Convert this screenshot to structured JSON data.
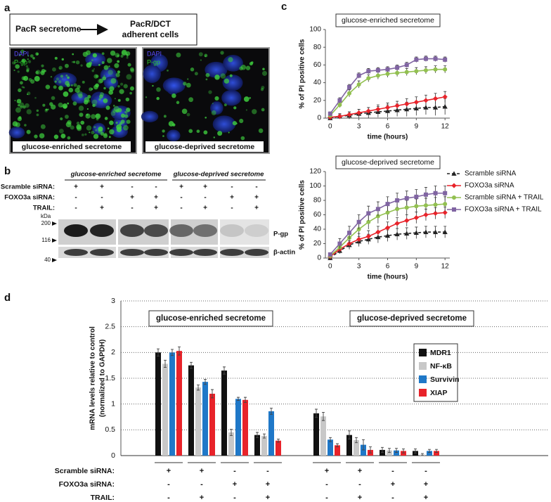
{
  "panel_labels": [
    "a",
    "b",
    "c",
    "d"
  ],
  "panel_a": {
    "scheme": {
      "source": "PacR secretome",
      "target": [
        "PacR/DCT",
        "adherent cells"
      ]
    },
    "images": [
      {
        "stains": [
          "DAPI",
          "P-gp"
        ],
        "caption": "glucose-enriched secretome"
      },
      {
        "stains": [
          "DAPI",
          "P-gp"
        ],
        "caption": "glucose-deprived secretome"
      }
    ]
  },
  "panel_b": {
    "groups": [
      "glucose-enriched secretome",
      "glucose-deprived secretome"
    ],
    "conditions": [
      {
        "label": "Scramble siRNA:",
        "signs": [
          "+",
          "+",
          "-",
          "-",
          "+",
          "+",
          "-",
          "-"
        ]
      },
      {
        "label": "FOXO3a siRNA:",
        "signs": [
          "-",
          "-",
          "+",
          "+",
          "-",
          "-",
          "+",
          "+"
        ]
      },
      {
        "label": "TRAIL:",
        "signs": [
          "-",
          "+",
          "-",
          "+",
          "-",
          "+",
          "-",
          "+"
        ]
      }
    ],
    "kda_unit": "kDa",
    "markers": [
      200,
      116,
      40
    ],
    "bands": [
      "P-gp",
      "β-actin"
    ]
  },
  "chart_data": [
    {
      "type": "line",
      "title": "glucose-enriched secretome",
      "xlabel": "time (hours)",
      "ylabel": "% of PI positive cells",
      "x": [
        0,
        1,
        2,
        3,
        4,
        5,
        6,
        7,
        8,
        9,
        10,
        11,
        12
      ],
      "xlim": [
        -0.5,
        12.5
      ],
      "xticks": [
        0,
        3,
        6,
        9,
        12
      ],
      "ylim": [
        0,
        100
      ],
      "yticks": [
        0,
        20,
        40,
        60,
        80,
        100
      ],
      "legend": false,
      "series": [
        {
          "color": "#222222",
          "marker": "triangle",
          "linestyle": "dashed",
          "values": [
            0,
            2,
            3,
            5,
            6,
            7,
            8,
            9,
            10,
            11,
            12,
            12,
            13
          ],
          "errors": [
            1,
            3,
            4,
            5,
            6,
            6,
            7,
            7,
            8,
            8,
            8,
            9,
            9
          ]
        },
        {
          "color": "#e8232a",
          "marker": "diamond",
          "linestyle": "solid",
          "values": [
            1,
            2,
            4,
            6,
            8,
            10,
            12,
            14,
            16,
            18,
            20,
            22,
            24
          ],
          "errors": [
            1,
            2,
            3,
            4,
            4,
            5,
            5,
            5,
            6,
            6,
            6,
            6,
            6
          ]
        },
        {
          "color": "#92c050",
          "marker": "circle",
          "linestyle": "solid",
          "values": [
            3,
            15,
            28,
            38,
            45,
            48,
            50,
            51,
            52,
            53,
            54,
            55,
            55
          ],
          "errors": [
            2,
            3,
            4,
            4,
            4,
            4,
            4,
            4,
            4,
            4,
            4,
            4,
            4
          ]
        },
        {
          "color": "#8064a2",
          "marker": "square",
          "linestyle": "solid",
          "values": [
            5,
            20,
            35,
            48,
            53,
            54,
            55,
            57,
            60,
            66,
            67,
            67,
            66
          ],
          "errors": [
            2,
            3,
            3,
            3,
            3,
            3,
            3,
            3,
            3,
            3,
            3,
            3,
            3
          ]
        }
      ]
    },
    {
      "type": "line",
      "title": "glucose-deprived secretome",
      "xlabel": "time (hours)",
      "ylabel": "% of PI positive cells",
      "x": [
        0,
        1,
        2,
        3,
        4,
        5,
        6,
        7,
        8,
        9,
        10,
        11,
        12
      ],
      "xlim": [
        -0.5,
        12.5
      ],
      "xticks": [
        0,
        3,
        6,
        9,
        12
      ],
      "ylim": [
        0,
        120
      ],
      "yticks": [
        0,
        20,
        40,
        60,
        80,
        100,
        120
      ],
      "legend": true,
      "legend_position": "right",
      "series": [
        {
          "name": "Scramble siRNA",
          "color": "#222222",
          "marker": "triangle",
          "linestyle": "dashed",
          "values": [
            0,
            10,
            18,
            23,
            26,
            29,
            31,
            33,
            34,
            35,
            36,
            36,
            36
          ],
          "errors": [
            1,
            4,
            6,
            7,
            7,
            8,
            8,
            8,
            8,
            8,
            8,
            8,
            8
          ]
        },
        {
          "name": "FOXO3a siRNA",
          "color": "#e8232a",
          "marker": "diamond",
          "linestyle": "solid",
          "values": [
            2,
            12,
            20,
            26,
            30,
            36,
            42,
            48,
            52,
            56,
            60,
            62,
            63
          ],
          "errors": [
            1,
            5,
            7,
            8,
            8,
            8,
            8,
            8,
            8,
            8,
            8,
            8,
            8
          ]
        },
        {
          "name": "Scramble siRNA + TRAIL",
          "color": "#92c050",
          "marker": "circle",
          "linestyle": "solid",
          "values": [
            3,
            15,
            28,
            40,
            50,
            58,
            63,
            68,
            70,
            72,
            73,
            74,
            75
          ],
          "errors": [
            2,
            6,
            8,
            9,
            10,
            10,
            10,
            10,
            10,
            10,
            10,
            10,
            10
          ]
        },
        {
          "name": "FOXO3a siRNA + TRAIL",
          "color": "#8064a2",
          "marker": "square",
          "linestyle": "solid",
          "values": [
            5,
            20,
            35,
            50,
            62,
            68,
            75,
            80,
            83,
            85,
            88,
            90,
            90
          ],
          "errors": [
            2,
            7,
            9,
            10,
            10,
            10,
            10,
            10,
            10,
            10,
            10,
            10,
            10
          ]
        }
      ]
    },
    {
      "type": "bar",
      "ylabel": [
        "mRNA levels relative to control",
        "(normalized to GAPDH)"
      ],
      "annotations": [
        "glucose-enriched secretome",
        "glucose-deprived secretome"
      ],
      "categories": [
        null,
        null,
        null,
        null,
        null,
        null,
        null,
        null
      ],
      "ylim": [
        0,
        3
      ],
      "yticks": [
        0,
        0.5,
        1,
        1.5,
        2,
        2.5,
        3
      ],
      "grid": true,
      "legend_position": "right",
      "series": [
        {
          "name": "MDR1",
          "color": "#111111",
          "values": [
            2.0,
            1.75,
            1.65,
            0.4,
            0.82,
            0.4,
            0.11,
            0.09
          ],
          "errors": [
            0.07,
            0.06,
            0.07,
            0.05,
            0.08,
            0.08,
            0.05,
            0.04
          ]
        },
        {
          "name": "NF-κB",
          "color": "#c8c8c8",
          "values": [
            1.78,
            1.32,
            0.45,
            0.38,
            0.76,
            0.3,
            0.1,
            0.02
          ],
          "errors": [
            0.07,
            0.05,
            0.06,
            0.04,
            0.08,
            0.05,
            0.04,
            0.02
          ]
        },
        {
          "name": "Survivin",
          "color": "#1f78c8",
          "values": [
            2.0,
            1.43,
            1.1,
            0.86,
            0.31,
            0.21,
            0.1,
            0.09
          ],
          "errors": [
            0.06,
            0.05,
            0.03,
            0.06,
            0.04,
            0.1,
            0.04,
            0.03
          ]
        },
        {
          "name": "XIAP",
          "color": "#e8232a",
          "values": [
            2.03,
            1.2,
            1.08,
            0.29,
            0.2,
            0.11,
            0.09,
            0.09
          ],
          "errors": [
            0.08,
            0.08,
            0.05,
            0.03,
            0.03,
            0.06,
            0.04,
            0.03
          ]
        }
      ],
      "conditions": [
        {
          "label": "Scramble siRNA:",
          "signs": [
            "+",
            "+",
            "-",
            "-",
            "+",
            "+",
            "-",
            "-"
          ]
        },
        {
          "label": "FOXO3a siRNA:",
          "signs": [
            "-",
            "-",
            "+",
            "+",
            "-",
            "-",
            "+",
            "+"
          ]
        },
        {
          "label": "TRAIL:",
          "signs": [
            "-",
            "+",
            "-",
            "+",
            "-",
            "+",
            "-",
            "+"
          ]
        }
      ]
    }
  ]
}
